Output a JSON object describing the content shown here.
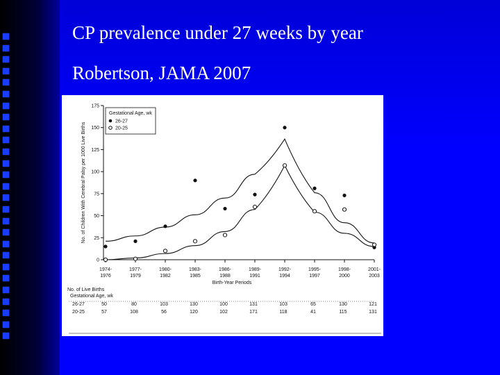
{
  "slide": {
    "title": "CP prevalence under 27 weeks by year",
    "subtitle": "Robertson, JAMA 2007"
  },
  "colors": {
    "background": "#0000ff",
    "title_text": "#ffffff",
    "figure_bg": "#ffffff",
    "ink": "#111111"
  },
  "chart_data": {
    "type": "scatter",
    "ylabel": "No. of Children With Cerebral Palsy per 1000 Live Births",
    "xlabel": "Birth-Year Periods",
    "ylim": [
      0,
      175
    ],
    "yticks": [
      "0",
      "25",
      "50",
      "75",
      "100",
      "125",
      "150",
      "175"
    ],
    "legend": {
      "title": "Gestational Age, wk",
      "position": "top-left",
      "entries": [
        "26-27",
        "20-25"
      ]
    },
    "categories": [
      "1974-1976",
      "1977-1979",
      "1980-1982",
      "1983-1985",
      "1986-1988",
      "1989-1991",
      "1992-1994",
      "1995-1997",
      "1998-2000",
      "2001-2003"
    ],
    "series": [
      {
        "name": "26-27",
        "marker": "filled-circle",
        "values": [
          15,
          21,
          38,
          90,
          58,
          74,
          150,
          81,
          73,
          14
        ],
        "fit": [
          21,
          27,
          37,
          51,
          70,
          97,
          137,
          76,
          42,
          19
        ]
      },
      {
        "name": "20-25",
        "marker": "open-circle",
        "values": [
          0,
          1,
          10,
          21,
          28,
          60,
          107,
          55,
          57,
          17
        ],
        "fit": [
          0,
          2,
          7,
          16,
          32,
          57,
          107,
          54,
          30,
          15
        ]
      }
    ],
    "table": {
      "title": "No. of Live Births",
      "subtitle": "Gestational Age, wk",
      "rows": [
        {
          "label": "26-27",
          "values": [
            "50",
            "80",
            "103",
            "130",
            "100",
            "131",
            "103",
            "65",
            "130",
            "121"
          ]
        },
        {
          "label": "20-25",
          "values": [
            "57",
            "108",
            "56",
            "120",
            "102",
            "171",
            "118",
            "41",
            "115",
            "131"
          ]
        }
      ]
    }
  }
}
